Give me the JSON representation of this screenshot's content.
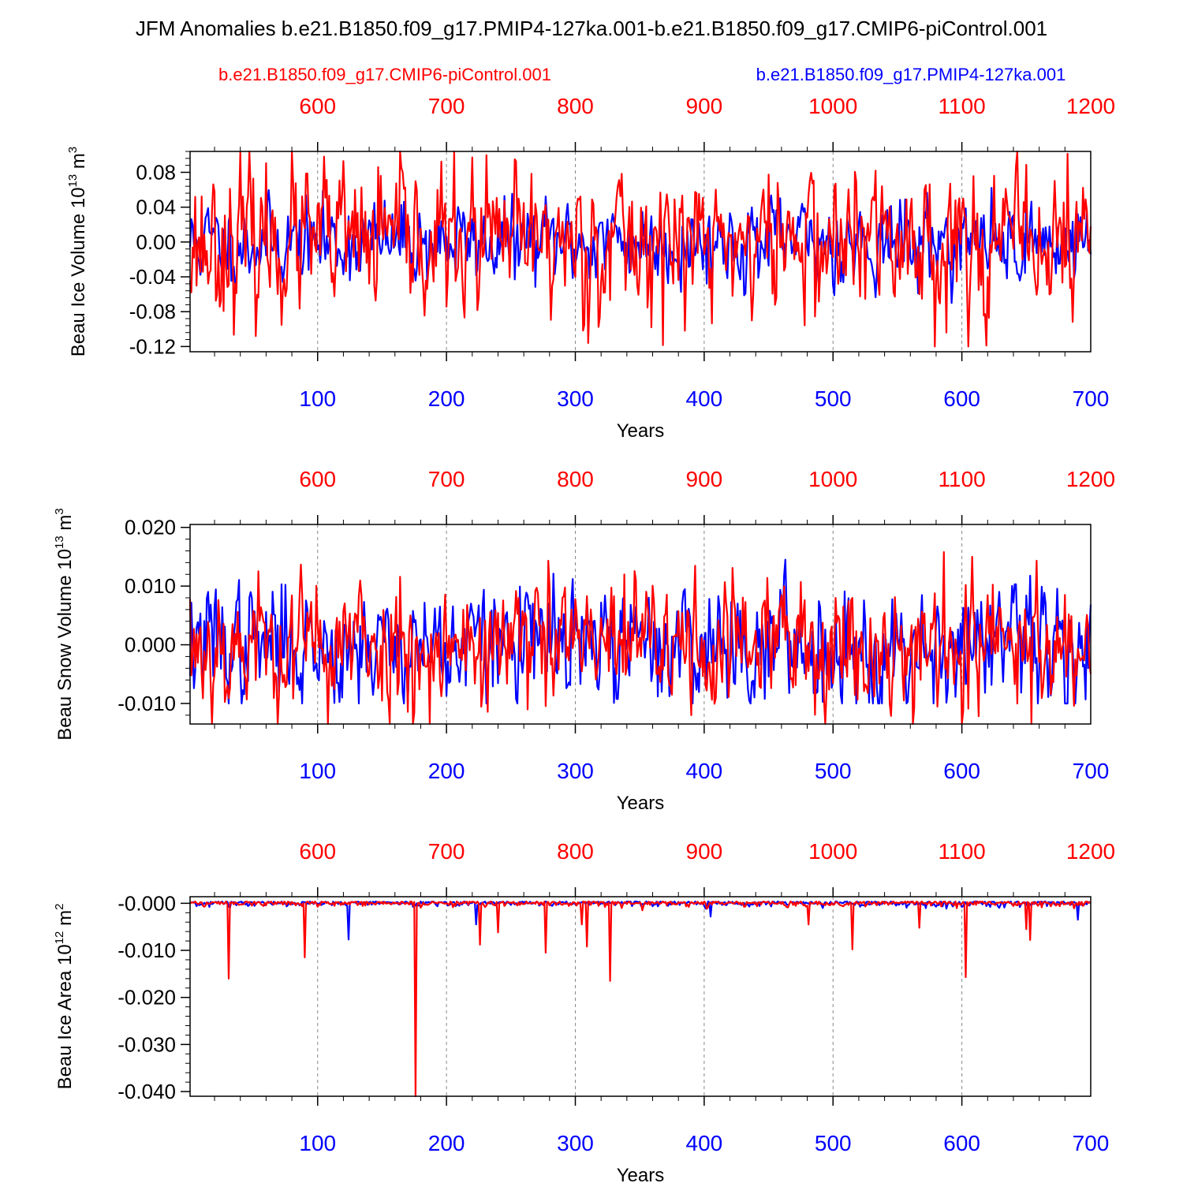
{
  "title": "JFM Anomalies b.e21.B1850.f09_g17.PMIP4-127ka.001-b.e21.B1850.f09_g17.CMIP6-piControl.001",
  "legend": {
    "red_label": "b.e21.B1850.f09_g17.CMIP6-piControl.001",
    "blue_label": "b.e21.B1850.f09_g17.PMIP4-127ka.001"
  },
  "colors": {
    "red": "#ff0000",
    "blue": "#0000ff",
    "axis": "#000000"
  },
  "chart_data": [
    {
      "type": "line",
      "ylabel": "Beau Ice Volume 10",
      "ylabel_sup": "13",
      "ylabel_unit": " m",
      "ylabel_unit_sup": "3",
      "xlabel": "Years",
      "xlim_bottom": [
        1,
        700
      ],
      "xlim_top": [
        501,
        1200
      ],
      "ylim": [
        -0.126,
        0.104
      ],
      "yticks": [
        {
          "value": 0.08,
          "label": "0.08"
        },
        {
          "value": 0.04,
          "label": "0.04"
        },
        {
          "value": 0.0,
          "label": "0.00"
        },
        {
          "value": -0.04,
          "label": "-0.04"
        },
        {
          "value": -0.08,
          "label": "-0.08"
        },
        {
          "value": -0.12,
          "label": "-0.12"
        }
      ],
      "xticks_bottom": [
        100,
        200,
        300,
        400,
        500,
        600,
        700
      ],
      "xticks_top": [
        600,
        700,
        800,
        900,
        1000,
        1100,
        1200
      ],
      "series": [
        {
          "name": "b.e21.B1850.f09_g17.PMIP4-127ka.001",
          "color": "blue",
          "amplitude": 0.022,
          "clip": [
            -0.07,
            0.093
          ],
          "seed": 11
        },
        {
          "name": "b.e21.B1850.f09_g17.CMIP6-piControl.001",
          "color": "red",
          "amplitude": 0.04,
          "clip": [
            -0.12,
            0.104
          ],
          "seed": 23
        }
      ]
    },
    {
      "type": "line",
      "ylabel": "Beau Snow Volume 10",
      "ylabel_sup": "13",
      "ylabel_unit": " m",
      "ylabel_unit_sup": "3",
      "xlabel": "Years",
      "xlim_bottom": [
        1,
        700
      ],
      "xlim_top": [
        501,
        1200
      ],
      "ylim": [
        -0.0135,
        0.0205
      ],
      "yticks": [
        {
          "value": 0.02,
          "label": "0.020"
        },
        {
          "value": 0.01,
          "label": "0.010"
        },
        {
          "value": 0.0,
          "label": "0.000"
        },
        {
          "value": -0.01,
          "label": "-0.010"
        }
      ],
      "xticks_bottom": [
        100,
        200,
        300,
        400,
        500,
        600,
        700
      ],
      "xticks_top": [
        600,
        700,
        800,
        900,
        1000,
        1100,
        1200
      ],
      "series": [
        {
          "name": "b.e21.B1850.f09_g17.PMIP4-127ka.001",
          "color": "blue",
          "amplitude": 0.0048,
          "clip": [
            -0.01,
            0.0145
          ],
          "seed": 37
        },
        {
          "name": "b.e21.B1850.f09_g17.CMIP6-piControl.001",
          "color": "red",
          "amplitude": 0.0055,
          "clip": [
            -0.0135,
            0.0205
          ],
          "seed": 53
        }
      ]
    },
    {
      "type": "line",
      "ylabel": "Beau Ice Area 10",
      "ylabel_sup": "12",
      "ylabel_unit": " m",
      "ylabel_unit_sup": "2",
      "xlabel": "Years",
      "xlim_bottom": [
        1,
        700
      ],
      "xlim_top": [
        501,
        1200
      ],
      "ylim": [
        -0.041,
        0.0014
      ],
      "yticks": [
        {
          "value": 0.0,
          "label": "-0.000"
        },
        {
          "value": -0.01,
          "label": "-0.010"
        },
        {
          "value": -0.02,
          "label": "-0.020"
        },
        {
          "value": -0.03,
          "label": "-0.030"
        },
        {
          "value": -0.04,
          "label": "-0.040"
        }
      ],
      "xticks_bottom": [
        100,
        200,
        300,
        400,
        500,
        600,
        700
      ],
      "xticks_top": [
        600,
        700,
        800,
        900,
        1000,
        1100,
        1200
      ],
      "series": [
        {
          "name": "b.e21.B1850.f09_g17.PMIP4-127ka.001",
          "color": "blue",
          "amplitude": 0.0006,
          "clip": [
            -0.01,
            0.0014
          ],
          "seed": 71,
          "spikes": [
            {
              "x": 124,
              "y": -0.0077
            },
            {
              "x": 223,
              "y": -0.0045
            },
            {
              "x": 405,
              "y": -0.0028
            },
            {
              "x": 690,
              "y": -0.0035
            }
          ]
        },
        {
          "name": "b.e21.B1850.f09_g17.CMIP6-piControl.001",
          "color": "red",
          "amplitude": 0.0006,
          "clip": [
            -0.041,
            0.0014
          ],
          "seed": 89,
          "spikes": [
            {
              "x": 31,
              "y": -0.016
            },
            {
              "x": 90,
              "y": -0.0115
            },
            {
              "x": 176,
              "y": -0.041
            },
            {
              "x": 226,
              "y": -0.0088
            },
            {
              "x": 240,
              "y": -0.0062
            },
            {
              "x": 277,
              "y": -0.0105
            },
            {
              "x": 305,
              "y": -0.0045
            },
            {
              "x": 309,
              "y": -0.0092
            },
            {
              "x": 327,
              "y": -0.0165
            },
            {
              "x": 481,
              "y": -0.0045
            },
            {
              "x": 515,
              "y": -0.0098
            },
            {
              "x": 567,
              "y": -0.0052
            },
            {
              "x": 603,
              "y": -0.0157
            },
            {
              "x": 650,
              "y": -0.0055
            },
            {
              "x": 653,
              "y": -0.0078
            }
          ]
        }
      ]
    }
  ]
}
